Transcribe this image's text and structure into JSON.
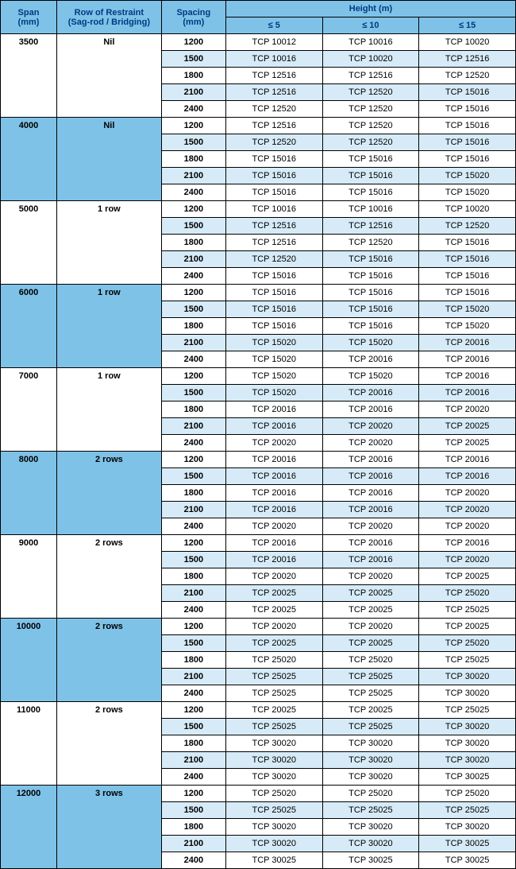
{
  "headers": {
    "span": "Span\n(mm)",
    "restraint": "Row of Restraint\n(Sag-rod / Bridging)",
    "spacing": "Spacing\n(mm)",
    "height": "Height (m)",
    "h5": "≤ 5",
    "h10": "≤ 10",
    "h15": "≤ 15"
  },
  "groups": [
    {
      "span": "3500",
      "restraint": "Nil",
      "blue": false,
      "rows": [
        {
          "spacing": "1200",
          "h5": "TCP 10012",
          "h10": "TCP 10016",
          "h15": "TCP 10020"
        },
        {
          "spacing": "1500",
          "h5": "TCP 10016",
          "h10": "TCP 10020",
          "h15": "TCP 12516"
        },
        {
          "spacing": "1800",
          "h5": "TCP 12516",
          "h10": "TCP 12516",
          "h15": "TCP 12520"
        },
        {
          "spacing": "2100",
          "h5": "TCP 12516",
          "h10": "TCP 12520",
          "h15": "TCP 15016"
        },
        {
          "spacing": "2400",
          "h5": "TCP 12520",
          "h10": "TCP 12520",
          "h15": "TCP 15016"
        }
      ]
    },
    {
      "span": "4000",
      "restraint": "Nil",
      "blue": true,
      "rows": [
        {
          "spacing": "1200",
          "h5": "TCP 12516",
          "h10": "TCP 12520",
          "h15": "TCP 15016"
        },
        {
          "spacing": "1500",
          "h5": "TCP 12520",
          "h10": "TCP 12520",
          "h15": "TCP 15016"
        },
        {
          "spacing": "1800",
          "h5": "TCP 15016",
          "h10": "TCP 15016",
          "h15": "TCP 15016"
        },
        {
          "spacing": "2100",
          "h5": "TCP 15016",
          "h10": "TCP 15016",
          "h15": "TCP 15020"
        },
        {
          "spacing": "2400",
          "h5": "TCP 15016",
          "h10": "TCP 15016",
          "h15": "TCP 15020"
        }
      ]
    },
    {
      "span": "5000",
      "restraint": "1 row",
      "blue": false,
      "rows": [
        {
          "spacing": "1200",
          "h5": "TCP 10016",
          "h10": "TCP 10016",
          "h15": "TCP 10020"
        },
        {
          "spacing": "1500",
          "h5": "TCP 12516",
          "h10": "TCP 12516",
          "h15": "TCP 12520"
        },
        {
          "spacing": "1800",
          "h5": "TCP 12516",
          "h10": "TCP 12520",
          "h15": "TCP 15016"
        },
        {
          "spacing": "2100",
          "h5": "TCP 12520",
          "h10": "TCP 15016",
          "h15": "TCP 15016"
        },
        {
          "spacing": "2400",
          "h5": "TCP 15016",
          "h10": "TCP 15016",
          "h15": "TCP 15016"
        }
      ]
    },
    {
      "span": "6000",
      "restraint": "1 row",
      "blue": true,
      "rows": [
        {
          "spacing": "1200",
          "h5": "TCP 15016",
          "h10": "TCP 15016",
          "h15": "TCP 15016"
        },
        {
          "spacing": "1500",
          "h5": "TCP 15016",
          "h10": "TCP 15016",
          "h15": "TCP 15020"
        },
        {
          "spacing": "1800",
          "h5": "TCP 15016",
          "h10": "TCP 15016",
          "h15": "TCP 15020"
        },
        {
          "spacing": "2100",
          "h5": "TCP 15020",
          "h10": "TCP 15020",
          "h15": "TCP 20016"
        },
        {
          "spacing": "2400",
          "h5": "TCP 15020",
          "h10": "TCP 20016",
          "h15": "TCP 20016"
        }
      ]
    },
    {
      "span": "7000",
      "restraint": "1 row",
      "blue": false,
      "rows": [
        {
          "spacing": "1200",
          "h5": "TCP 15020",
          "h10": "TCP 15020",
          "h15": "TCP 20016"
        },
        {
          "spacing": "1500",
          "h5": "TCP 15020",
          "h10": "TCP 20016",
          "h15": "TCP 20016"
        },
        {
          "spacing": "1800",
          "h5": "TCP 20016",
          "h10": "TCP 20016",
          "h15": "TCP 20020"
        },
        {
          "spacing": "2100",
          "h5": "TCP 20016",
          "h10": "TCP 20020",
          "h15": "TCP 20025"
        },
        {
          "spacing": "2400",
          "h5": "TCP 20020",
          "h10": "TCP 20020",
          "h15": "TCP 20025"
        }
      ]
    },
    {
      "span": "8000",
      "restraint": "2 rows",
      "blue": true,
      "rows": [
        {
          "spacing": "1200",
          "h5": "TCP 20016",
          "h10": "TCP 20016",
          "h15": "TCP 20016"
        },
        {
          "spacing": "1500",
          "h5": "TCP 20016",
          "h10": "TCP 20016",
          "h15": "TCP 20016"
        },
        {
          "spacing": "1800",
          "h5": "TCP 20016",
          "h10": "TCP 20016",
          "h15": "TCP 20020"
        },
        {
          "spacing": "2100",
          "h5": "TCP 20016",
          "h10": "TCP 20016",
          "h15": "TCP 20020"
        },
        {
          "spacing": "2400",
          "h5": "TCP 20020",
          "h10": "TCP 20020",
          "h15": "TCP 20020"
        }
      ]
    },
    {
      "span": "9000",
      "restraint": "2 rows",
      "blue": false,
      "rows": [
        {
          "spacing": "1200",
          "h5": "TCP 20016",
          "h10": "TCP 20016",
          "h15": "TCP 20016"
        },
        {
          "spacing": "1500",
          "h5": "TCP 20016",
          "h10": "TCP 20016",
          "h15": "TCP 20020"
        },
        {
          "spacing": "1800",
          "h5": "TCP 20020",
          "h10": "TCP 20020",
          "h15": "TCP 20025"
        },
        {
          "spacing": "2100",
          "h5": "TCP 20025",
          "h10": "TCP 20025",
          "h15": "TCP 25020"
        },
        {
          "spacing": "2400",
          "h5": "TCP 20025",
          "h10": "TCP 20025",
          "h15": "TCP 25025"
        }
      ]
    },
    {
      "span": "10000",
      "restraint": "2 rows",
      "blue": true,
      "rows": [
        {
          "spacing": "1200",
          "h5": "TCP 20020",
          "h10": "TCP 20020",
          "h15": "TCP 20025"
        },
        {
          "spacing": "1500",
          "h5": "TCP 20025",
          "h10": "TCP 20025",
          "h15": "TCP 25020"
        },
        {
          "spacing": "1800",
          "h5": "TCP 25020",
          "h10": "TCP 25020",
          "h15": "TCP 25025"
        },
        {
          "spacing": "2100",
          "h5": "TCP 25025",
          "h10": "TCP 25025",
          "h15": "TCP 30020"
        },
        {
          "spacing": "2400",
          "h5": "TCP 25025",
          "h10": "TCP 25025",
          "h15": "TCP 30020"
        }
      ]
    },
    {
      "span": "11000",
      "restraint": "2 rows",
      "blue": false,
      "rows": [
        {
          "spacing": "1200",
          "h5": "TCP 20025",
          "h10": "TCP 20025",
          "h15": "TCP 25025"
        },
        {
          "spacing": "1500",
          "h5": "TCP 25025",
          "h10": "TCP 25025",
          "h15": "TCP 30020"
        },
        {
          "spacing": "1800",
          "h5": "TCP 30020",
          "h10": "TCP 30020",
          "h15": "TCP 30020"
        },
        {
          "spacing": "2100",
          "h5": "TCP 30020",
          "h10": "TCP 30020",
          "h15": "TCP 30020"
        },
        {
          "spacing": "2400",
          "h5": "TCP 30020",
          "h10": "TCP 30020",
          "h15": "TCP 30025"
        }
      ]
    },
    {
      "span": "12000",
      "restraint": "3 rows",
      "blue": true,
      "rows": [
        {
          "spacing": "1200",
          "h5": "TCP 25020",
          "h10": "TCP 25020",
          "h15": "TCP 25020"
        },
        {
          "spacing": "1500",
          "h5": "TCP 25025",
          "h10": "TCP 25025",
          "h15": "TCP 25025"
        },
        {
          "spacing": "1800",
          "h5": "TCP 30020",
          "h10": "TCP 30020",
          "h15": "TCP 30020"
        },
        {
          "spacing": "2100",
          "h5": "TCP 30020",
          "h10": "TCP 30020",
          "h15": "TCP 30025"
        },
        {
          "spacing": "2400",
          "h5": "TCP 30025",
          "h10": "TCP 30025",
          "h15": "TCP 30025"
        }
      ]
    }
  ],
  "colors": {
    "header_bg": "#7fc2e8",
    "header_fg": "#003a80",
    "alt_row_bg": "#d6ebf7",
    "border": "#000000"
  }
}
